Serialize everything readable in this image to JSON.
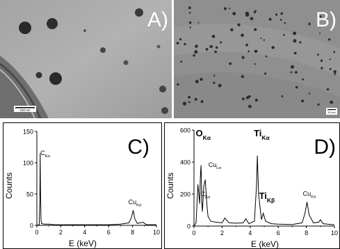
{
  "panels": {
    "a": {
      "letter": "A)",
      "scale_label": "100 nm"
    },
    "b": {
      "letter": "B)",
      "scale_label": "20 nm"
    },
    "c": {
      "letter": "C)"
    },
    "d": {
      "letter": "D)"
    }
  },
  "colors": {
    "tem_light": "#b8b8b8",
    "tem_dark": "#2a2a2a",
    "line": "#000000"
  },
  "chart_data": [
    {
      "type": "line",
      "panel": "C)",
      "xlabel": "E (keV)",
      "ylabel": "Counts",
      "xlim": [
        0,
        10
      ],
      "ylim": [
        0,
        150
      ],
      "x_ticks": [
        0,
        2,
        4,
        6,
        8,
        10
      ],
      "y_ticks": [
        0,
        50,
        100,
        150
      ],
      "x": [
        0,
        0.2,
        0.25,
        0.28,
        0.3,
        0.35,
        0.4,
        0.6,
        1.0,
        1.5,
        2.0,
        3.0,
        4.0,
        5.0,
        6.0,
        7.0,
        7.7,
        7.9,
        8.05,
        8.2,
        8.4,
        8.9,
        9.0,
        9.2,
        10
      ],
      "y": [
        0,
        1,
        40,
        115,
        60,
        8,
        3,
        2,
        2,
        1,
        1,
        1,
        1,
        1,
        1,
        2,
        4,
        12,
        24,
        10,
        3,
        5,
        3,
        1,
        1
      ],
      "annotations": [
        {
          "text": "C",
          "sub": "Kα",
          "x": 0.3,
          "y": 112
        },
        {
          "text": "Cu",
          "sub": "Kα",
          "x": 8.0,
          "y": 34
        }
      ]
    },
    {
      "type": "line",
      "panel": "D)",
      "xlabel": "E (keV)",
      "ylabel": "Counts",
      "xlim": [
        0,
        10
      ],
      "ylim": [
        0,
        600
      ],
      "x_ticks": [
        0,
        2,
        4,
        6,
        8,
        10
      ],
      "y_ticks": [
        0,
        200,
        400,
        600
      ],
      "x": [
        0,
        0.15,
        0.25,
        0.28,
        0.32,
        0.4,
        0.45,
        0.5,
        0.52,
        0.55,
        0.6,
        0.7,
        0.8,
        0.93,
        1.0,
        1.2,
        1.5,
        2.0,
        2.2,
        2.5,
        3.0,
        3.5,
        3.7,
        3.9,
        4.3,
        4.45,
        4.51,
        4.6,
        4.8,
        4.93,
        5.1,
        5.5,
        6.0,
        7.0,
        7.7,
        7.9,
        8.05,
        8.2,
        8.5,
        8.9,
        9.0,
        9.2,
        10
      ],
      "y": [
        0,
        20,
        200,
        260,
        220,
        140,
        300,
        380,
        330,
        160,
        90,
        250,
        290,
        120,
        60,
        30,
        25,
        20,
        50,
        20,
        18,
        20,
        45,
        15,
        30,
        250,
        440,
        200,
        40,
        80,
        30,
        15,
        12,
        10,
        20,
        80,
        150,
        70,
        20,
        25,
        40,
        15,
        8
      ],
      "annotations": [
        {
          "text": "O",
          "sub": "Kα",
          "x": 0.52,
          "y": 560
        },
        {
          "text": "Cu",
          "sub": "Lα",
          "x": 0.93,
          "y": 370
        },
        {
          "text": "C",
          "sub": "Kα",
          "x": 0.28,
          "y": 230
        },
        {
          "text": "Ti",
          "sub": "Kα",
          "x": 4.51,
          "y": 560
        },
        {
          "text": "Ti",
          "sub": "Kβ",
          "x": 4.93,
          "y": 170
        },
        {
          "text": "Cu",
          "sub": "Kα",
          "x": 8.05,
          "y": 190
        }
      ]
    }
  ]
}
